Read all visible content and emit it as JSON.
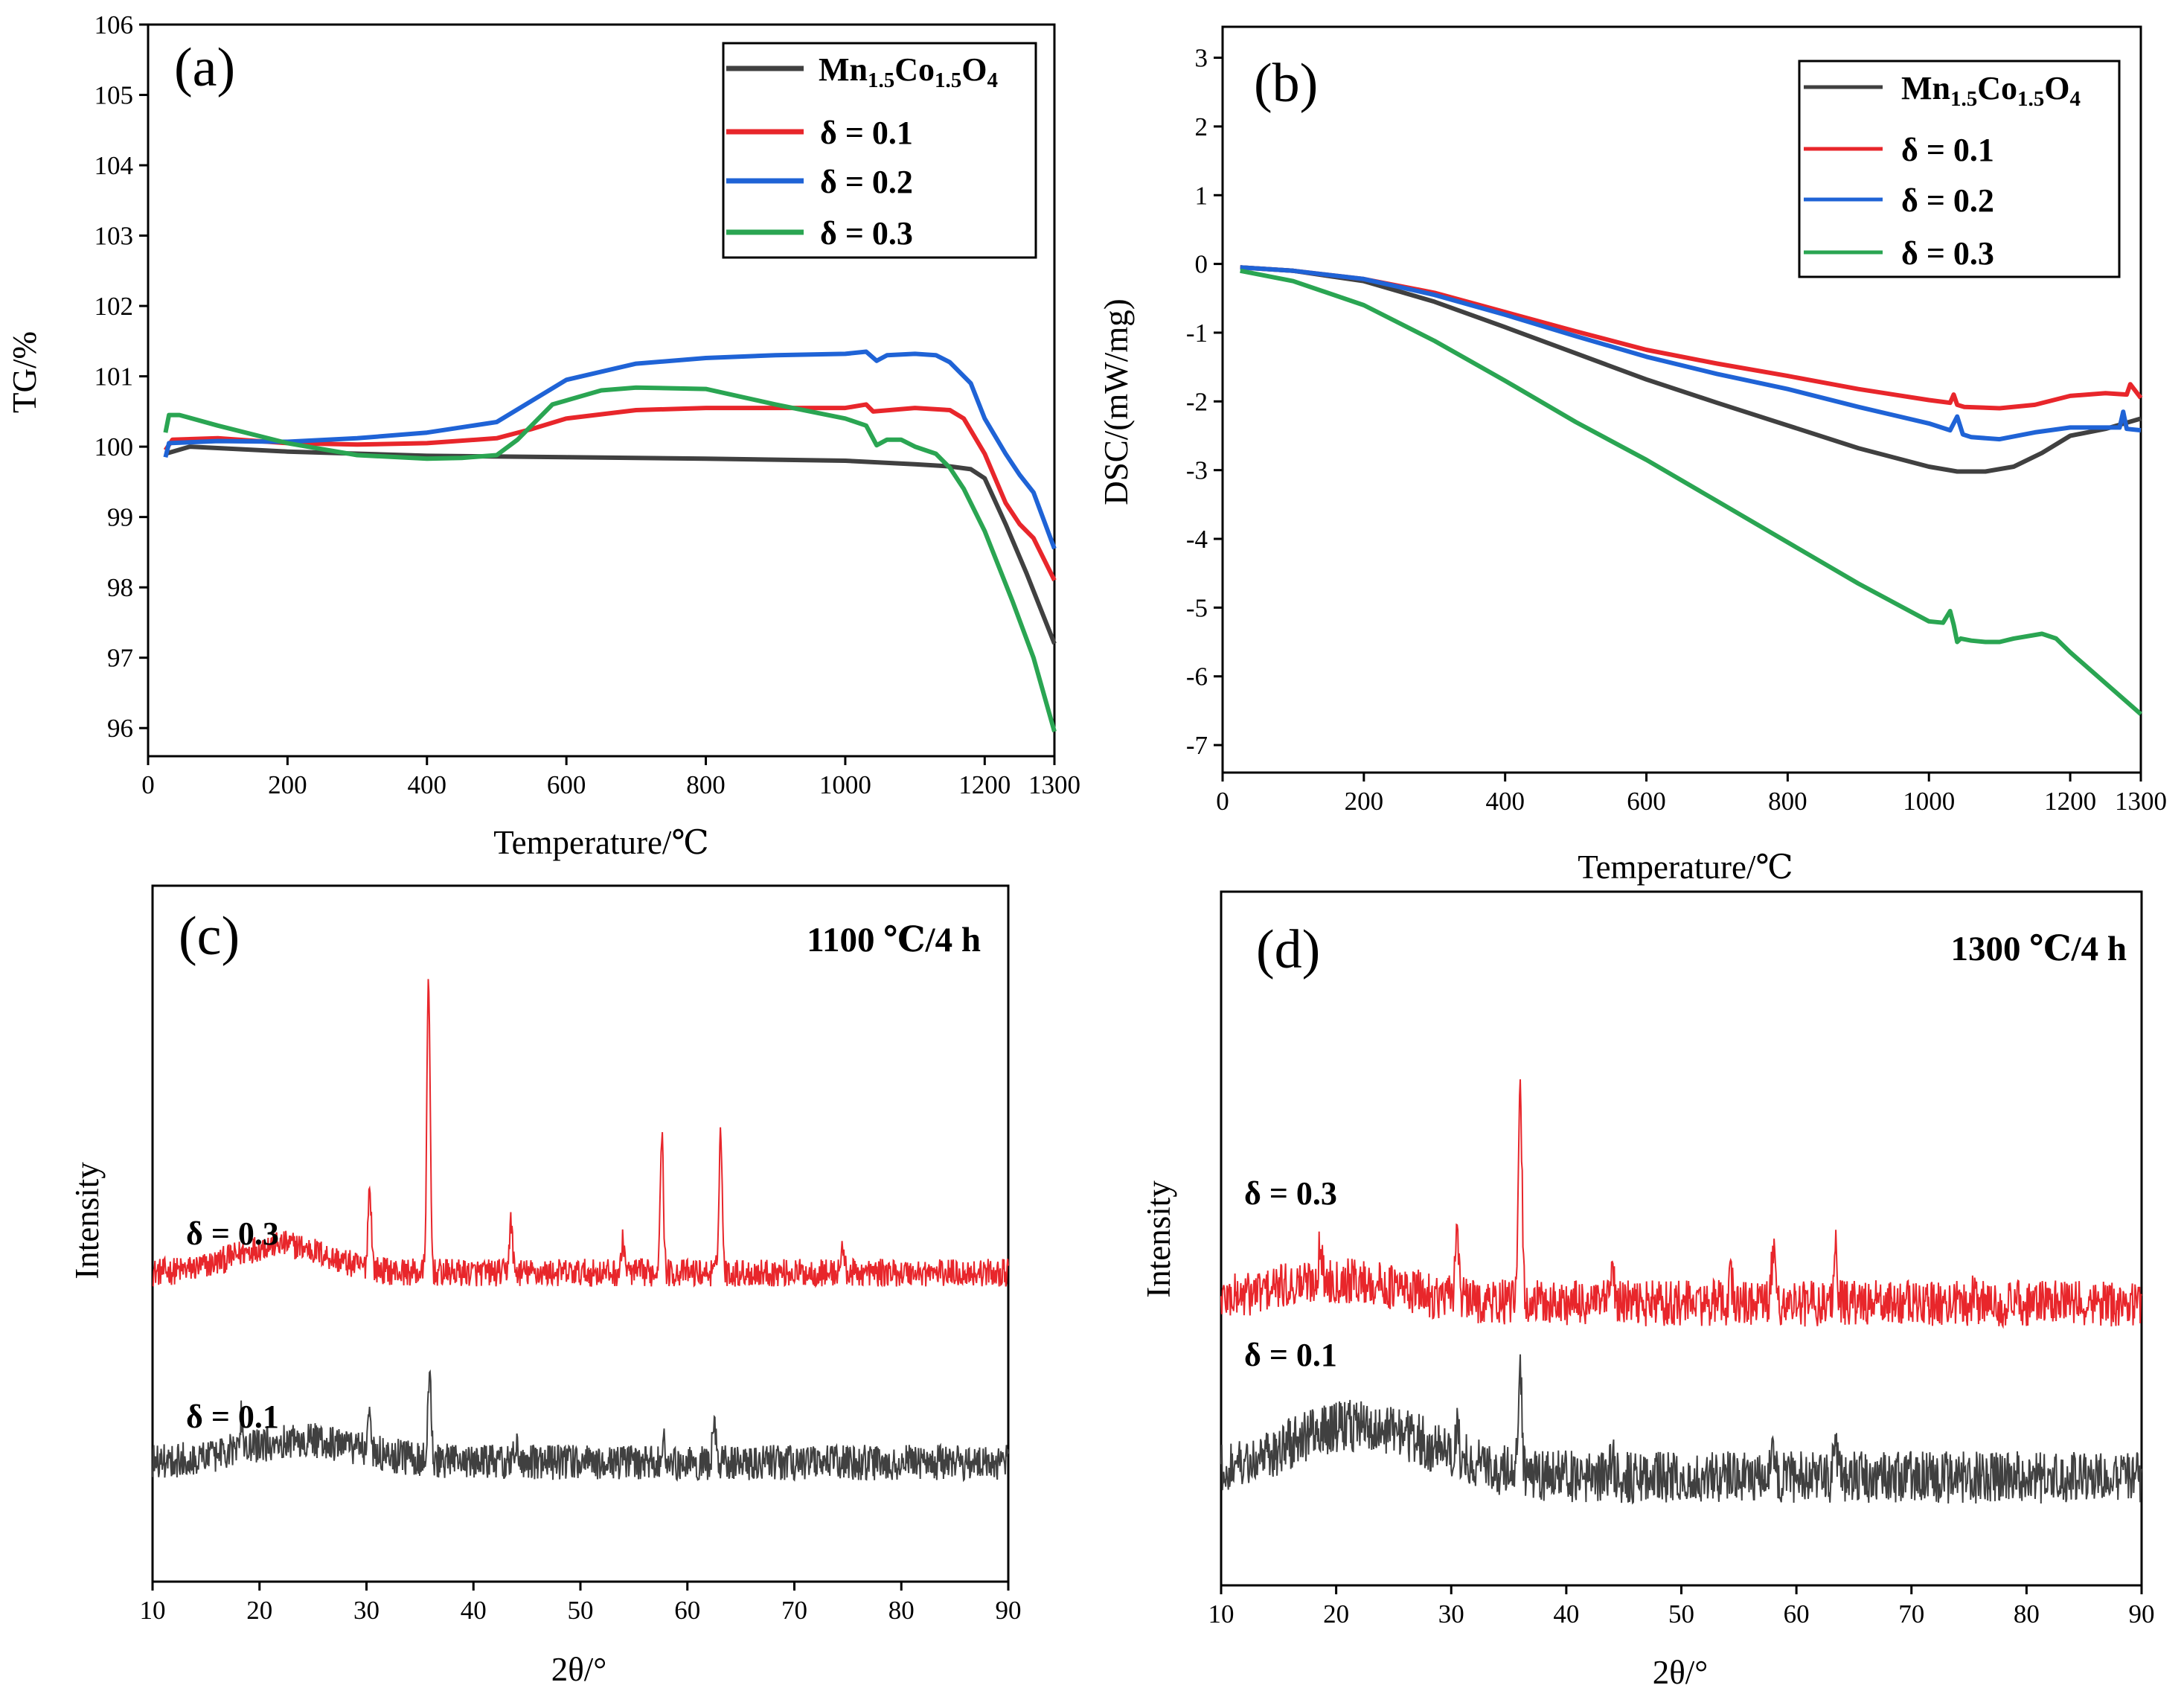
{
  "chart_data": [
    {
      "id": "a",
      "type": "line",
      "panel_label": "(a)",
      "xlabel": "Temperature/℃",
      "ylabel": "TG/%",
      "xlim": [
        0,
        1300
      ],
      "ylim": [
        95.6,
        106
      ],
      "xticks": [
        0,
        200,
        400,
        600,
        800,
        1000,
        1200,
        1300
      ],
      "yticks": [
        96,
        97,
        98,
        99,
        100,
        101,
        102,
        103,
        104,
        105,
        106
      ],
      "legend": {
        "position": "top-right",
        "entries": [
          {
            "base": "Mn",
            "sub1": "1.5",
            "mid": "Co",
            "sub2": "1.5",
            "end": "O",
            "sub3": "4"
          },
          {
            "text": "δ = 0.1"
          },
          {
            "text": "δ = 0.2"
          },
          {
            "text": "δ = 0.3"
          }
        ]
      },
      "series": [
        {
          "name": "Mn1.5Co1.5O4",
          "color": "#404040",
          "x": [
            25,
            60,
            200,
            400,
            600,
            800,
            1000,
            1100,
            1150,
            1180,
            1200,
            1230,
            1260,
            1300
          ],
          "y": [
            99.9,
            100.0,
            99.93,
            99.87,
            99.85,
            99.83,
            99.8,
            99.75,
            99.72,
            99.68,
            99.55,
            98.9,
            98.2,
            97.2
          ]
        },
        {
          "name": "δ = 0.1",
          "color": "#e8262b",
          "x": [
            25,
            35,
            100,
            200,
            300,
            400,
            500,
            550,
            600,
            700,
            800,
            900,
            1000,
            1030,
            1040,
            1100,
            1150,
            1170,
            1200,
            1230,
            1250,
            1270,
            1300
          ],
          "y": [
            99.95,
            100.1,
            100.12,
            100.05,
            100.03,
            100.05,
            100.12,
            100.25,
            100.4,
            100.52,
            100.55,
            100.55,
            100.55,
            100.6,
            100.5,
            100.55,
            100.52,
            100.4,
            99.9,
            99.2,
            98.9,
            98.7,
            98.1
          ]
        },
        {
          "name": "δ = 0.2",
          "color": "#1f63d6",
          "x": [
            25,
            30,
            100,
            200,
            300,
            400,
            500,
            550,
            600,
            700,
            800,
            900,
            1000,
            1030,
            1045,
            1060,
            1100,
            1130,
            1150,
            1180,
            1200,
            1230,
            1250,
            1270,
            1300
          ],
          "y": [
            99.85,
            100.05,
            100.08,
            100.07,
            100.12,
            100.2,
            100.35,
            100.65,
            100.95,
            101.18,
            101.26,
            101.3,
            101.32,
            101.35,
            101.22,
            101.3,
            101.32,
            101.3,
            101.2,
            100.9,
            100.4,
            99.9,
            99.6,
            99.35,
            98.55
          ]
        },
        {
          "name": "δ = 0.3",
          "color": "#2aa552",
          "x": [
            25,
            30,
            45,
            100,
            200,
            300,
            400,
            450,
            500,
            530,
            580,
            650,
            700,
            800,
            900,
            1000,
            1030,
            1045,
            1060,
            1080,
            1100,
            1130,
            1150,
            1170,
            1200,
            1240,
            1270,
            1300
          ],
          "y": [
            100.2,
            100.45,
            100.45,
            100.3,
            100.05,
            99.88,
            99.83,
            99.84,
            99.88,
            100.1,
            100.6,
            100.8,
            100.84,
            100.82,
            100.6,
            100.4,
            100.3,
            100.02,
            100.1,
            100.1,
            100.0,
            99.9,
            99.7,
            99.4,
            98.8,
            97.8,
            97.0,
            95.95
          ]
        }
      ]
    },
    {
      "id": "b",
      "type": "line",
      "panel_label": "(b)",
      "xlabel": "Temperature/℃",
      "ylabel": "DSC/(mW/mg)",
      "xlim": [
        0,
        1300
      ],
      "ylim": [
        -7.4,
        3.45
      ],
      "xticks": [
        0,
        200,
        400,
        600,
        800,
        1000,
        1200,
        1300
      ],
      "yticks": [
        -7,
        -6,
        -5,
        -4,
        -3,
        -2,
        -1,
        0,
        1,
        2,
        3
      ],
      "legend": {
        "position": "top-right",
        "entries": [
          {
            "base": "Mn",
            "sub1": "1.5",
            "mid": "Co",
            "sub2": "1.5",
            "end": "O",
            "sub3": "4"
          },
          {
            "text": "δ = 0.1"
          },
          {
            "text": "δ = 0.2"
          },
          {
            "text": "δ = 0.3"
          }
        ]
      },
      "series": [
        {
          "name": "Mn1.5Co1.5O4",
          "color": "#404040",
          "x": [
            25,
            100,
            200,
            300,
            400,
            500,
            600,
            700,
            800,
            900,
            1000,
            1040,
            1080,
            1120,
            1160,
            1200,
            1250,
            1300
          ],
          "y": [
            -0.05,
            -0.1,
            -0.25,
            -0.55,
            -0.92,
            -1.3,
            -1.68,
            -2.02,
            -2.35,
            -2.68,
            -2.95,
            -3.02,
            -3.02,
            -2.95,
            -2.75,
            -2.5,
            -2.4,
            -2.25
          ]
        },
        {
          "name": "δ = 0.1",
          "color": "#e8262b",
          "x": [
            25,
            100,
            200,
            300,
            400,
            500,
            600,
            700,
            800,
            900,
            1000,
            1030,
            1035,
            1040,
            1050,
            1100,
            1150,
            1200,
            1250,
            1280,
            1285,
            1300
          ],
          "y": [
            -0.05,
            -0.1,
            -0.22,
            -0.42,
            -0.7,
            -0.98,
            -1.25,
            -1.45,
            -1.63,
            -1.82,
            -1.98,
            -2.02,
            -1.9,
            -2.05,
            -2.08,
            -2.1,
            -2.05,
            -1.92,
            -1.88,
            -1.9,
            -1.75,
            -1.95
          ]
        },
        {
          "name": "δ = 0.2",
          "color": "#1f63d6",
          "x": [
            25,
            100,
            200,
            300,
            400,
            500,
            600,
            700,
            800,
            900,
            1000,
            1030,
            1040,
            1048,
            1060,
            1100,
            1150,
            1200,
            1250,
            1270,
            1275,
            1280,
            1300
          ],
          "y": [
            -0.05,
            -0.1,
            -0.22,
            -0.45,
            -0.74,
            -1.05,
            -1.35,
            -1.6,
            -1.82,
            -2.08,
            -2.32,
            -2.42,
            -2.22,
            -2.48,
            -2.52,
            -2.55,
            -2.45,
            -2.38,
            -2.38,
            -2.38,
            -2.15,
            -2.4,
            -2.42
          ]
        },
        {
          "name": "δ = 0.3",
          "color": "#2aa552",
          "x": [
            25,
            100,
            200,
            300,
            400,
            500,
            600,
            700,
            800,
            900,
            1000,
            1020,
            1030,
            1035,
            1040,
            1045,
            1060,
            1080,
            1100,
            1120,
            1160,
            1180,
            1200,
            1250,
            1300
          ],
          "y": [
            -0.1,
            -0.25,
            -0.6,
            -1.12,
            -1.7,
            -2.3,
            -2.85,
            -3.45,
            -4.05,
            -4.65,
            -5.2,
            -5.22,
            -5.05,
            -5.25,
            -5.5,
            -5.45,
            -5.48,
            -5.5,
            -5.5,
            -5.45,
            -5.38,
            -5.45,
            -5.65,
            -6.1,
            -6.55
          ]
        }
      ]
    },
    {
      "id": "c",
      "type": "line",
      "panel_label": "(c)",
      "condition": "1100 ℃/4 h",
      "xlabel": "2θ/°",
      "ylabel": "Intensity",
      "xlim": [
        10,
        90
      ],
      "xticks": [
        10,
        20,
        30,
        40,
        50,
        60,
        70,
        80,
        90
      ],
      "series": [
        {
          "name": "δ = 0.3",
          "label": "δ = 0.3",
          "color": "#e8262b",
          "baseline": 0.3,
          "noise": 0.022,
          "hump": {
            "center": 22,
            "width": 6,
            "height": 0.045
          },
          "peaks": [
            {
              "pos": 30.3,
              "height": 0.13
            },
            {
              "pos": 35.8,
              "height": 0.45
            },
            {
              "pos": 43.5,
              "height": 0.08
            },
            {
              "pos": 54.0,
              "height": 0.05
            },
            {
              "pos": 57.6,
              "height": 0.22
            },
            {
              "pos": 63.1,
              "height": 0.22
            },
            {
              "pos": 74.5,
              "height": 0.04
            }
          ]
        },
        {
          "name": "δ = 0.1",
          "label": "δ = 0.1",
          "color": "#404040",
          "baseline": 0.0,
          "noise": 0.028,
          "hump": {
            "center": 24,
            "width": 8,
            "height": 0.035
          },
          "peaks": [
            {
              "pos": 18.3,
              "height": 0.05
            },
            {
              "pos": 30.2,
              "height": 0.06
            },
            {
              "pos": 35.9,
              "height": 0.14
            },
            {
              "pos": 44.0,
              "height": 0.03
            },
            {
              "pos": 57.8,
              "height": 0.04
            },
            {
              "pos": 62.5,
              "height": 0.06
            }
          ]
        }
      ]
    },
    {
      "id": "d",
      "type": "line",
      "panel_label": "(d)",
      "condition": "1300 ℃/4 h",
      "xlabel": "2θ/°",
      "ylabel": "Intensity",
      "xlim": [
        10,
        90
      ],
      "xticks": [
        10,
        20,
        30,
        40,
        50,
        60,
        70,
        80,
        90
      ],
      "series": [
        {
          "name": "δ = 0.3",
          "label": "δ = 0.3",
          "color": "#e8262b",
          "baseline": 0.3,
          "noise": 0.04,
          "hump": {
            "center": 20,
            "width": 8,
            "height": 0.04
          },
          "peaks": [
            {
              "pos": 18.6,
              "height": 0.06
            },
            {
              "pos": 30.5,
              "height": 0.13
            },
            {
              "pos": 36.0,
              "height": 0.36
            },
            {
              "pos": 44.0,
              "height": 0.06
            },
            {
              "pos": 54.3,
              "height": 0.04
            },
            {
              "pos": 58.0,
              "height": 0.09
            },
            {
              "pos": 63.4,
              "height": 0.1
            },
            {
              "pos": 75.5,
              "height": 0.03
            }
          ]
        },
        {
          "name": "δ = 0.1",
          "label": "δ = 0.1",
          "color": "#404040",
          "baseline": 0.0,
          "noise": 0.045,
          "hump": {
            "center": 22,
            "width": 9,
            "height": 0.09
          },
          "peaks": [
            {
              "pos": 30.5,
              "height": 0.05
            },
            {
              "pos": 36.0,
              "height": 0.17
            },
            {
              "pos": 44.0,
              "height": 0.03
            },
            {
              "pos": 58.0,
              "height": 0.04
            },
            {
              "pos": 63.4,
              "height": 0.045
            }
          ]
        }
      ]
    }
  ]
}
